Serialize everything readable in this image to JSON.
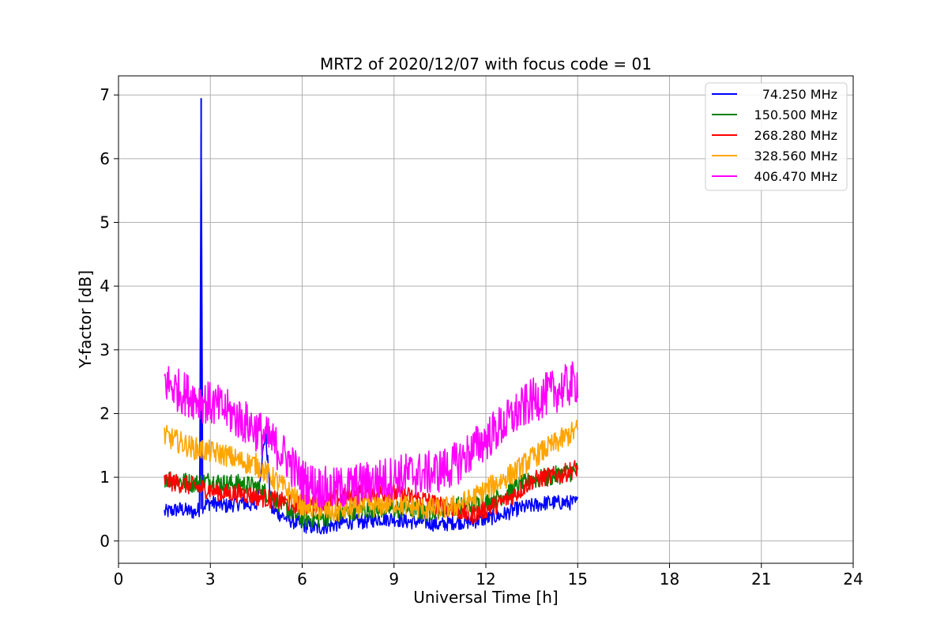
{
  "chart_data": {
    "type": "line",
    "title": "MRT2 of 2020/12/07 with focus code = 01",
    "xlabel": "Universal Time [h]",
    "ylabel": "Y-factor [dB]",
    "xlim": [
      0,
      24
    ],
    "ylim": [
      -0.35,
      7.3
    ],
    "xticks": [
      0,
      3,
      6,
      9,
      12,
      15,
      18,
      21,
      24
    ],
    "yticks": [
      0,
      1,
      2,
      3,
      4,
      5,
      6,
      7
    ],
    "grid": true,
    "legend_position": "top-right",
    "series": [
      {
        "name": "74.250 MHz",
        "color": "#0000ff",
        "x": [
          1.5,
          2.0,
          2.5,
          2.65,
          2.7,
          2.75,
          3.0,
          3.5,
          4.0,
          4.5,
          4.8,
          5.0,
          5.5,
          6.0,
          6.5,
          7.0,
          7.5,
          8.0,
          8.5,
          9.0,
          9.5,
          10.0,
          10.5,
          11.0,
          11.5,
          12.0,
          12.5,
          13.0,
          13.5,
          14.0,
          14.5,
          15.0
        ],
        "y": [
          0.45,
          0.5,
          0.45,
          0.5,
          6.95,
          0.55,
          0.6,
          0.55,
          0.6,
          0.55,
          1.7,
          0.5,
          0.35,
          0.25,
          0.2,
          0.25,
          0.3,
          0.3,
          0.35,
          0.35,
          0.3,
          0.3,
          0.25,
          0.3,
          0.3,
          0.35,
          0.4,
          0.5,
          0.55,
          0.6,
          0.6,
          0.6
        ],
        "spread": 0.12
      },
      {
        "name": "150.500 MHz",
        "color": "#008000",
        "x": [
          1.5,
          2.0,
          2.5,
          3.0,
          3.5,
          4.0,
          4.5,
          5.0,
          5.5,
          6.0,
          6.5,
          7.0,
          7.5,
          8.0,
          8.5,
          9.0,
          9.5,
          10.0,
          10.5,
          11.0,
          11.5,
          12.0,
          12.5,
          13.0,
          13.5,
          14.0,
          14.5,
          15.0
        ],
        "y": [
          1.0,
          0.95,
          0.9,
          0.95,
          0.9,
          0.9,
          0.85,
          0.7,
          0.5,
          0.35,
          0.35,
          0.4,
          0.45,
          0.5,
          0.5,
          0.5,
          0.5,
          0.45,
          0.5,
          0.55,
          0.55,
          0.6,
          0.7,
          0.85,
          0.95,
          1.0,
          1.05,
          1.1
        ],
        "spread": 0.15
      },
      {
        "name": "268.280 MHz",
        "color": "#ff0000",
        "x": [
          1.5,
          2.0,
          2.5,
          3.0,
          3.5,
          4.0,
          4.5,
          5.0,
          5.5,
          6.0,
          6.5,
          7.0,
          7.5,
          8.0,
          8.5,
          9.0,
          9.5,
          10.0,
          10.5,
          11.0,
          11.5,
          12.0,
          12.5,
          13.0,
          13.5,
          14.0,
          14.5,
          15.0
        ],
        "y": [
          0.95,
          0.9,
          0.85,
          0.8,
          0.75,
          0.75,
          0.7,
          0.65,
          0.6,
          0.55,
          0.6,
          0.65,
          0.7,
          0.75,
          0.75,
          0.75,
          0.7,
          0.65,
          0.55,
          0.5,
          0.4,
          0.5,
          0.6,
          0.75,
          0.95,
          1.0,
          1.05,
          1.15
        ],
        "spread": 0.15
      },
      {
        "name": "328.560 MHz",
        "color": "#ffa500",
        "x": [
          1.5,
          2.0,
          2.5,
          3.0,
          3.5,
          4.0,
          4.5,
          5.0,
          5.5,
          6.0,
          6.5,
          7.0,
          7.5,
          8.0,
          8.5,
          9.0,
          9.5,
          10.0,
          10.5,
          11.0,
          11.5,
          12.0,
          12.5,
          13.0,
          13.5,
          14.0,
          14.5,
          15.0
        ],
        "y": [
          1.65,
          1.55,
          1.45,
          1.4,
          1.35,
          1.25,
          1.2,
          1.0,
          0.8,
          0.55,
          0.5,
          0.45,
          0.5,
          0.55,
          0.55,
          0.6,
          0.55,
          0.5,
          0.5,
          0.55,
          0.65,
          0.8,
          0.95,
          1.1,
          1.3,
          1.45,
          1.6,
          1.75
        ],
        "spread": 0.18
      },
      {
        "name": "406.470 MHz",
        "color": "#ff00ff",
        "x": [
          1.5,
          2.0,
          2.5,
          3.0,
          3.5,
          4.0,
          4.5,
          5.0,
          5.5,
          6.0,
          6.5,
          7.0,
          7.5,
          8.0,
          8.5,
          9.0,
          9.5,
          10.0,
          10.5,
          11.0,
          11.5,
          12.0,
          12.5,
          13.0,
          13.5,
          14.0,
          14.5,
          15.0
        ],
        "y": [
          2.5,
          2.35,
          2.25,
          2.15,
          2.05,
          1.9,
          1.75,
          1.55,
          1.3,
          0.95,
          0.85,
          0.8,
          0.85,
          0.9,
          0.95,
          1.0,
          1.05,
          1.05,
          1.1,
          1.2,
          1.4,
          1.6,
          1.8,
          2.0,
          2.2,
          2.3,
          2.4,
          2.5
        ],
        "spread": 0.35
      }
    ]
  }
}
